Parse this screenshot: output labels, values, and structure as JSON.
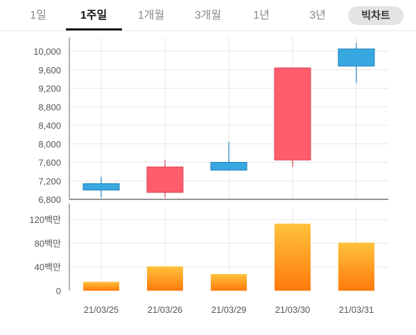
{
  "tabs": [
    {
      "label": "1일",
      "active": false
    },
    {
      "label": "1주일",
      "active": true
    },
    {
      "label": "1개월",
      "active": false
    },
    {
      "label": "3개월",
      "active": false
    },
    {
      "label": "1년",
      "active": false
    },
    {
      "label": "3년",
      "active": false
    }
  ],
  "chart_type_button": "빅차트",
  "colors": {
    "up": "#ff5c6c",
    "down": "#38a8e0",
    "volume_top": "#ffc23d",
    "volume_bottom": "#ff7a0a"
  },
  "chart_data": [
    {
      "type": "candlestick",
      "title": "",
      "ylim": [
        6800,
        10300
      ],
      "yticks": [
        6800,
        7200,
        7600,
        8000,
        8400,
        8800,
        9200,
        9600,
        10000
      ],
      "ytick_labels": [
        "6,800",
        "7,200",
        "7,600",
        "8,000",
        "8,400",
        "8,800",
        "9,200",
        "9,600",
        "10,000"
      ],
      "categories": [
        "21/03/25",
        "21/03/26",
        "21/03/29",
        "21/03/30",
        "21/03/31"
      ],
      "series": [
        {
          "values": [
            {
              "open": 7140,
              "high": 7290,
              "low": 6840,
              "close": 7000
            },
            {
              "open": 6950,
              "high": 7650,
              "low": 6840,
              "close": 7500
            },
            {
              "open": 7600,
              "high": 8040,
              "low": 7430,
              "close": 7430
            },
            {
              "open": 7650,
              "high": 9640,
              "low": 7500,
              "close": 9640
            },
            {
              "open": 10050,
              "high": 10180,
              "low": 9320,
              "close": 9680
            }
          ]
        }
      ]
    },
    {
      "type": "bar",
      "title": "",
      "ylim": [
        0,
        140
      ],
      "yticks": [
        0,
        40,
        80,
        120
      ],
      "ytick_labels": [
        "0",
        "40백만",
        "80백만",
        "120백만"
      ],
      "categories": [
        "21/03/25",
        "21/03/26",
        "21/03/29",
        "21/03/30",
        "21/03/31"
      ],
      "series": [
        {
          "values": [
            15,
            41,
            28,
            113,
            81
          ]
        }
      ]
    }
  ]
}
